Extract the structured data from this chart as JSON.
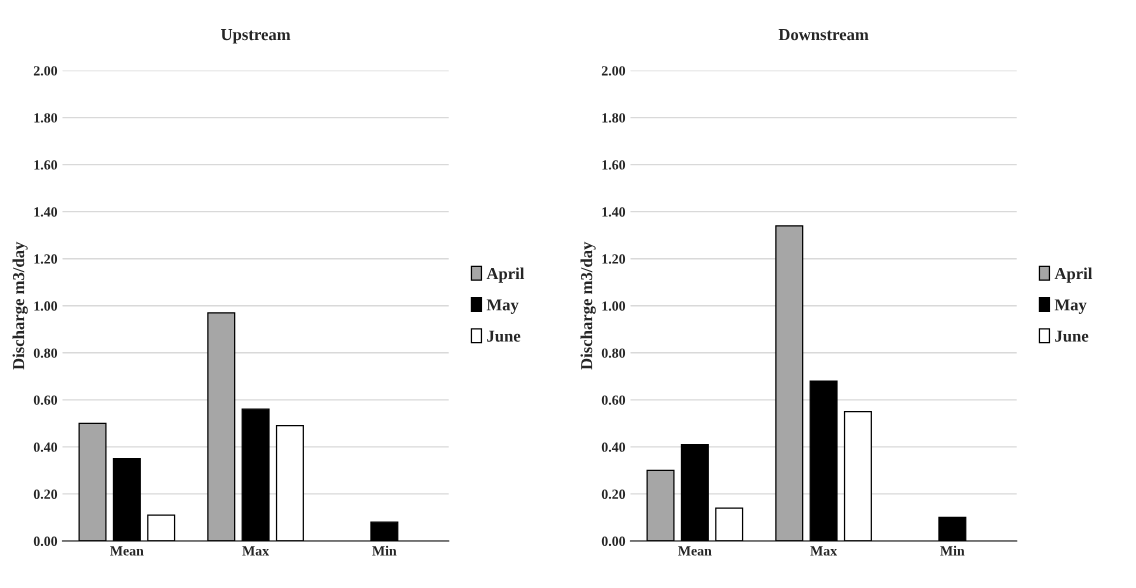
{
  "chart_data": [
    {
      "type": "bar",
      "title": "Upstream",
      "ylabel": "Discharge m3/day",
      "categories": [
        "Mean",
        "Max",
        "Min"
      ],
      "series": [
        {
          "name": "April",
          "color": "#a6a6a6",
          "values": [
            0.5,
            0.97,
            0
          ]
        },
        {
          "name": "May",
          "color": "#000000",
          "values": [
            0.35,
            0.56,
            0.08
          ]
        },
        {
          "name": "June",
          "color": "#ffffff",
          "values": [
            0.11,
            0.49,
            0
          ]
        }
      ],
      "ylim": [
        0,
        2
      ],
      "yticks": [
        {
          "value": 0,
          "label": "0.00"
        },
        {
          "value": 0.2,
          "label": "0.20"
        },
        {
          "value": 0.4,
          "label": "0.40"
        },
        {
          "value": 0.6,
          "label": "0.60"
        },
        {
          "value": 0.8,
          "label": "0.80"
        },
        {
          "value": 1,
          "label": "1.00"
        },
        {
          "value": 1.2,
          "label": "1.20"
        },
        {
          "value": 1.4,
          "label": "1.40"
        },
        {
          "value": 1.6,
          "label": "1.60"
        },
        {
          "value": 1.8,
          "label": "1.80"
        },
        {
          "value": 2,
          "label": "2.00"
        }
      ],
      "grid": "y",
      "legend": "right"
    },
    {
      "type": "bar",
      "title": "Downstream",
      "ylabel": "Discharge m3/day",
      "categories": [
        "Mean",
        "Max",
        "Min"
      ],
      "series": [
        {
          "name": "April",
          "color": "#a6a6a6",
          "values": [
            0.3,
            1.34,
            0
          ]
        },
        {
          "name": "May",
          "color": "#000000",
          "values": [
            0.41,
            0.68,
            0.1
          ]
        },
        {
          "name": "June",
          "color": "#ffffff",
          "values": [
            0.14,
            0.55,
            0
          ]
        }
      ],
      "ylim": [
        0,
        2
      ],
      "yticks": [
        {
          "value": 0,
          "label": "0.00"
        },
        {
          "value": 0.2,
          "label": "0.20"
        },
        {
          "value": 0.4,
          "label": "0.40"
        },
        {
          "value": 0.6,
          "label": "0.60"
        },
        {
          "value": 0.8,
          "label": "0.80"
        },
        {
          "value": 1,
          "label": "1.00"
        },
        {
          "value": 1.2,
          "label": "1.20"
        },
        {
          "value": 1.4,
          "label": "1.40"
        },
        {
          "value": 1.6,
          "label": "1.60"
        },
        {
          "value": 1.8,
          "label": "1.80"
        },
        {
          "value": 2,
          "label": "2.00"
        }
      ],
      "grid": "y",
      "legend": "right"
    }
  ]
}
